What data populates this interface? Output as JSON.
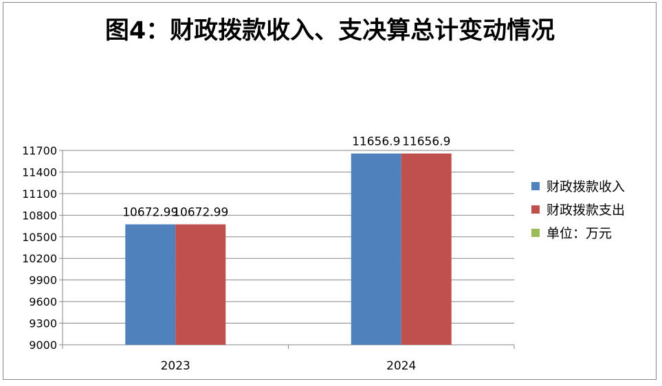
{
  "chart_data": {
    "type": "bar",
    "title": "图4：财政拨款收入、支决算总计变动情况",
    "categories": [
      "2023",
      "2024"
    ],
    "series": [
      {
        "name": "财政拨款收入",
        "color": "#4f81bd",
        "values": [
          10672.99,
          11656.9
        ],
        "labels": [
          "10672.99",
          "11656.9"
        ]
      },
      {
        "name": "财政拨款支出",
        "color": "#c0504d",
        "values": [
          10672.99,
          11656.9
        ],
        "labels": [
          "10672.99",
          "11656.9"
        ]
      },
      {
        "name": "单位：万元",
        "color": "#9bbb59",
        "values": [
          null,
          null
        ],
        "labels": [
          "",
          ""
        ]
      }
    ],
    "ylim": [
      9000,
      11700
    ],
    "yticks": [
      9000,
      9300,
      9600,
      9900,
      10200,
      10500,
      10800,
      11100,
      11400,
      11700
    ],
    "grid": true,
    "legend_position": "right"
  }
}
